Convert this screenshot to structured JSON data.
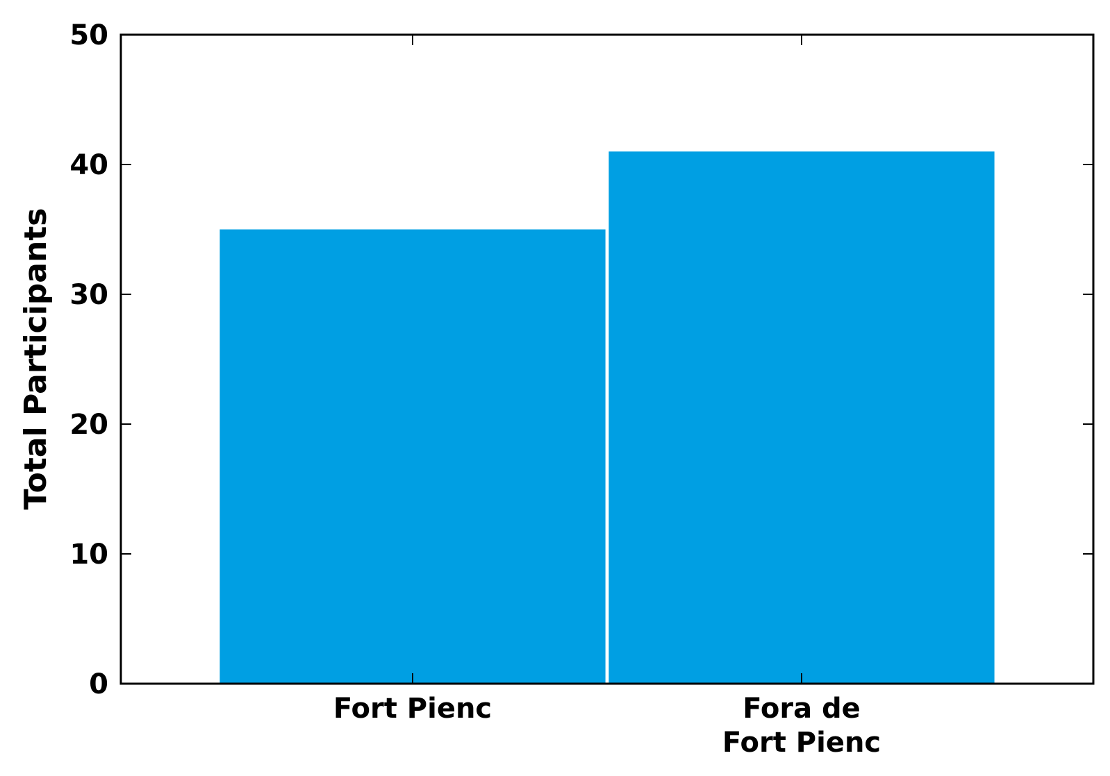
{
  "chart_data": {
    "type": "bar",
    "title": "",
    "xlabel": "",
    "ylabel": "Total Participants",
    "categories": [
      [
        "Fort Pienc"
      ],
      [
        "Fora de",
        "Fort Pienc"
      ]
    ],
    "values": [
      35,
      41
    ],
    "ylim": [
      0,
      50
    ],
    "yticks": [
      0,
      10,
      20,
      30,
      40,
      50
    ],
    "grid": false,
    "legend": "none",
    "colors": {
      "bar": "#009FE3",
      "axis": "#000000",
      "background": "#FFFFFF"
    }
  }
}
